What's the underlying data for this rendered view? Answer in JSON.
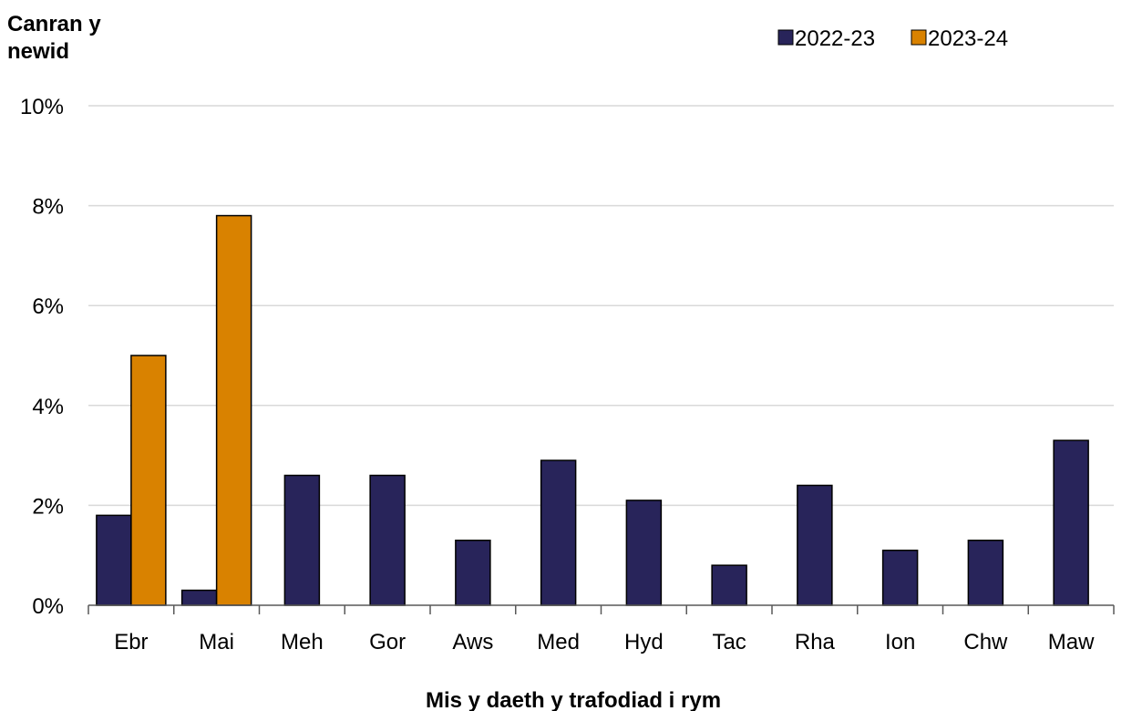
{
  "chart_data": {
    "type": "bar",
    "ylabel_lines": [
      "Canran y",
      "newid"
    ],
    "xlabel": "Mis y daeth y trafodiad i rym",
    "categories": [
      "Ebr",
      "Mai",
      "Meh",
      "Gor",
      "Aws",
      "Med",
      "Hyd",
      "Tac",
      "Rha",
      "Ion",
      "Chw",
      "Maw"
    ],
    "series": [
      {
        "name": "2022-23",
        "color": "#28245a",
        "values": [
          1.8,
          0.3,
          2.6,
          2.6,
          1.3,
          2.9,
          2.1,
          0.8,
          2.4,
          1.1,
          1.3,
          3.3
        ]
      },
      {
        "name": "2023-24",
        "color": "#d98200",
        "values": [
          5.0,
          7.8,
          null,
          null,
          null,
          null,
          null,
          null,
          null,
          null,
          null,
          null
        ]
      }
    ],
    "ylim": [
      0,
      10
    ],
    "yticks": [
      0,
      2,
      4,
      6,
      8,
      10
    ],
    "ytick_suffix": "%",
    "grid": true,
    "legend_position": "top-right"
  }
}
